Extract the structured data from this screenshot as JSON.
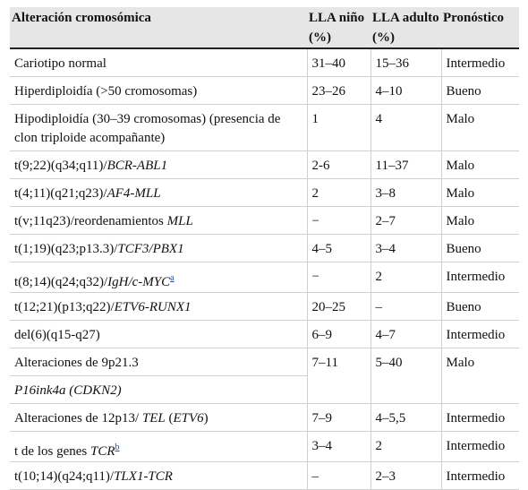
{
  "table": {
    "headers": [
      "Alteración cromosómica",
      "LLA niño (%)",
      "LLA adulto (%)",
      "Pronóstico"
    ],
    "rows": [
      {
        "alteration": "Cariotipo normal",
        "child": "31–40",
        "adult": "15–36",
        "prognosis": "Intermedio"
      },
      {
        "alteration": "Hiperdiploidía (>50 cromosomas)",
        "child": "23–26",
        "adult": "4–10",
        "prognosis": "Bueno"
      },
      {
        "alteration": "Hipodiploidía (30–39 cromosomas) (presencia de clon triploide acompañante)",
        "child": "1",
        "adult": "4",
        "prognosis": "Malo"
      },
      {
        "alteration_prefix": "t(9;22)(q34;q11)/",
        "alteration_gene": "BCR-ABL1",
        "child": "2-6",
        "adult": "11–37",
        "prognosis": "Malo"
      },
      {
        "alteration_prefix": "t(4;11)(q21;q23)/",
        "alteration_gene": "AF4-MLL",
        "child": "2",
        "adult": "3–8",
        "prognosis": "Malo"
      },
      {
        "alteration_prefix": "t(v;11q23)/reordenamientos ",
        "alteration_gene": "MLL",
        "child": "−",
        "adult": "2–7",
        "prognosis": "Malo"
      },
      {
        "alteration_prefix": "t(1;19)(q23;p13.3)/",
        "alteration_gene": "TCF3/PBX1",
        "child": "4–5",
        "adult": "3–4",
        "prognosis": "Bueno"
      },
      {
        "alteration_prefix": "t(8;14)(q24;q32)/",
        "alteration_gene": "IgH/c-MYC",
        "footnote": "a",
        "child": "−",
        "adult": "2",
        "prognosis": "Intermedio"
      },
      {
        "alteration_prefix": "t(12;21)(p13;q22)/",
        "alteration_gene": "ETV6-RUNX1",
        "child": "20–25",
        "adult": "–",
        "prognosis": "Bueno"
      },
      {
        "alteration": "del(6)(q15-q27)",
        "child": "6–9",
        "adult": "4–7",
        "prognosis": "Intermedio"
      },
      {
        "alteration": "Alteraciones de 9p21.3",
        "alteration_sub": "P16ink4a (CDKN2)",
        "child": "7–11",
        "adult": "5–40",
        "prognosis": "Malo"
      },
      {
        "alteration_prefix": "Alteraciones de 12p13/ ",
        "alteration_gene": "TEL",
        "alteration_suffix_open": " (",
        "alteration_gene2": "ETV6",
        "alteration_suffix_close": ")",
        "child": "7–9",
        "adult": "4–5,5",
        "prognosis": "Intermedio"
      },
      {
        "alteration_prefix": "t de los genes ",
        "alteration_gene": "TCR",
        "footnote": "b",
        "child": "3–4",
        "adult": "2",
        "prognosis": "Intermedio"
      },
      {
        "alteration_prefix": "t(10;14)(q24;q11)/",
        "alteration_gene": "TLX1-TCR",
        "child": "–",
        "adult": "2–3",
        "prognosis": "Intermedio"
      }
    ]
  }
}
